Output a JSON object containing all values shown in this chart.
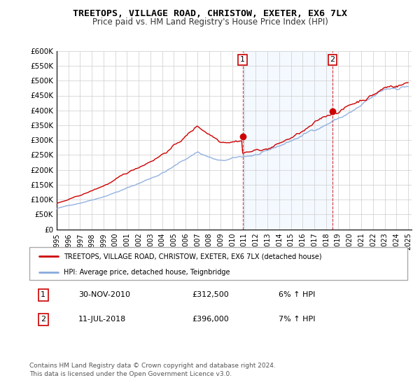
{
  "title": "TREETOPS, VILLAGE ROAD, CHRISTOW, EXETER, EX6 7LX",
  "subtitle": "Price paid vs. HM Land Registry's House Price Index (HPI)",
  "ylim": [
    0,
    600000
  ],
  "yticks": [
    0,
    50000,
    100000,
    150000,
    200000,
    250000,
    300000,
    350000,
    400000,
    450000,
    500000,
    550000,
    600000
  ],
  "ytick_labels": [
    "£0",
    "£50K",
    "£100K",
    "£150K",
    "£200K",
    "£250K",
    "£300K",
    "£350K",
    "£400K",
    "£450K",
    "£500K",
    "£550K",
    "£600K"
  ],
  "sale1_date": "30-NOV-2010",
  "sale1_price": 312500,
  "sale1_hpi": "6% ↑ HPI",
  "sale2_date": "11-JUL-2018",
  "sale2_price": 396000,
  "sale2_hpi": "7% ↑ HPI",
  "legend_line1": "TREETOPS, VILLAGE ROAD, CHRISTOW, EXETER, EX6 7LX (detached house)",
  "legend_line2": "HPI: Average price, detached house, Teignbridge",
  "footer1": "Contains HM Land Registry data © Crown copyright and database right 2024.",
  "footer2": "This data is licensed under the Open Government Licence v3.0.",
  "hpi_color": "#88aadd",
  "price_color": "#cc0000",
  "shaded_region_color": "#ddeeff",
  "grid_color": "#cccccc",
  "x_start_year": 1995,
  "x_end_year": 2025
}
